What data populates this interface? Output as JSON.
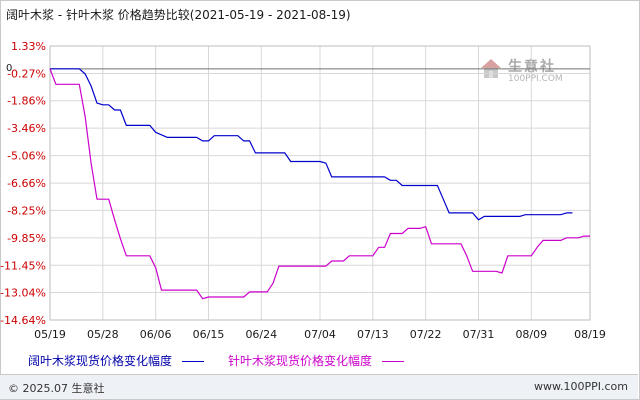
{
  "title": "阔叶木浆 - 针叶木浆 价格趋势比较(2021-05-19 - 2021-08-19)",
  "watermark": {
    "name": "生意社",
    "site": "100PPI.COM"
  },
  "footer": {
    "copyright": "© 2025.07 生意社",
    "url": "www.100PPI.com"
  },
  "colors": {
    "series1": "#0000cc",
    "series2": "#cc00cc",
    "grid": "#d8d8d8",
    "axis_text": "#cc0000",
    "baseline": "#707070"
  },
  "chart_data": {
    "type": "line",
    "title": "阔叶木浆 - 针叶木浆 价格趋势比较(2021-05-19 - 2021-08-19)",
    "y_ticks": [
      "1.33%",
      "-0.27%",
      "-1.86%",
      "-3.46%",
      "-5.06%",
      "-6.66%",
      "-8.25%",
      "-9.85%",
      "-11.45%",
      "-13.04%",
      "-14.64%"
    ],
    "y_tick_values": [
      1.33,
      -0.27,
      -1.86,
      -3.46,
      -5.06,
      -6.66,
      -8.25,
      -9.85,
      -11.45,
      -13.04,
      -14.64
    ],
    "ylim": [
      -14.64,
      1.33
    ],
    "zero_label": "0",
    "x_ticks": [
      "05/19",
      "05/28",
      "06/06",
      "06/15",
      "06/24",
      "07/04",
      "07/13",
      "07/22",
      "07/31",
      "08/09",
      "08/19"
    ],
    "x_tick_days": [
      0,
      9,
      18,
      27,
      36,
      46,
      55,
      64,
      73,
      82,
      92
    ],
    "xlim": [
      0,
      92
    ],
    "grid": true,
    "legend_position": "bottom",
    "series": [
      {
        "name": "阔叶木浆现货价格变化幅度",
        "color": "#0000cc",
        "points": [
          [
            0,
            0
          ],
          [
            5,
            0
          ],
          [
            6,
            -0.3
          ],
          [
            7,
            -1.0
          ],
          [
            8,
            -2.0
          ],
          [
            9,
            -2.1
          ],
          [
            10,
            -2.1
          ],
          [
            11,
            -2.4
          ],
          [
            12,
            -2.4
          ],
          [
            13,
            -3.3
          ],
          [
            17,
            -3.3
          ],
          [
            18,
            -3.7
          ],
          [
            20,
            -4.0
          ],
          [
            25,
            -4.0
          ],
          [
            26,
            -4.2
          ],
          [
            27,
            -4.2
          ],
          [
            28,
            -3.9
          ],
          [
            32,
            -3.9
          ],
          [
            33,
            -4.2
          ],
          [
            34,
            -4.2
          ],
          [
            35,
            -4.9
          ],
          [
            40,
            -4.9
          ],
          [
            41,
            -5.4
          ],
          [
            46,
            -5.4
          ],
          [
            47,
            -5.5
          ],
          [
            48,
            -6.3
          ],
          [
            57,
            -6.3
          ],
          [
            58,
            -6.5
          ],
          [
            59,
            -6.5
          ],
          [
            60,
            -6.8
          ],
          [
            66,
            -6.8
          ],
          [
            67,
            -7.6
          ],
          [
            68,
            -8.4
          ],
          [
            72,
            -8.4
          ],
          [
            73,
            -8.8
          ],
          [
            74,
            -8.6
          ],
          [
            80,
            -8.6
          ],
          [
            81,
            -8.5
          ],
          [
            87,
            -8.5
          ],
          [
            88,
            -8.4
          ],
          [
            89,
            -8.4
          ]
        ]
      },
      {
        "name": "针叶木浆现货价格变化幅度",
        "color": "#cc00cc",
        "points": [
          [
            0,
            0
          ],
          [
            1,
            -0.9
          ],
          [
            5,
            -0.9
          ],
          [
            6,
            -2.8
          ],
          [
            7,
            -5.5
          ],
          [
            8,
            -7.6
          ],
          [
            10,
            -7.6
          ],
          [
            11,
            -8.8
          ],
          [
            12,
            -9.9
          ],
          [
            13,
            -10.9
          ],
          [
            17,
            -10.9
          ],
          [
            18,
            -11.6
          ],
          [
            19,
            -12.9
          ],
          [
            25,
            -12.9
          ],
          [
            26,
            -13.4
          ],
          [
            27,
            -13.3
          ],
          [
            33,
            -13.3
          ],
          [
            34,
            -13.0
          ],
          [
            37,
            -13.0
          ],
          [
            38,
            -12.5
          ],
          [
            39,
            -11.5
          ],
          [
            47,
            -11.5
          ],
          [
            48,
            -11.2
          ],
          [
            50,
            -11.2
          ],
          [
            51,
            -10.9
          ],
          [
            55,
            -10.9
          ],
          [
            56,
            -10.4
          ],
          [
            57,
            -10.4
          ],
          [
            58,
            -9.6
          ],
          [
            60,
            -9.6
          ],
          [
            61,
            -9.3
          ],
          [
            63,
            -9.3
          ],
          [
            64,
            -9.2
          ],
          [
            65,
            -10.2
          ],
          [
            70,
            -10.2
          ],
          [
            71,
            -10.9
          ],
          [
            72,
            -11.8
          ],
          [
            76,
            -11.8
          ],
          [
            77,
            -11.9
          ],
          [
            78,
            -10.9
          ],
          [
            82,
            -10.9
          ],
          [
            83,
            -10.4
          ],
          [
            84,
            -10.0
          ],
          [
            87,
            -10.0
          ],
          [
            88,
            -9.85
          ],
          [
            90,
            -9.85
          ],
          [
            91,
            -9.75
          ],
          [
            92,
            -9.75
          ]
        ]
      }
    ]
  }
}
